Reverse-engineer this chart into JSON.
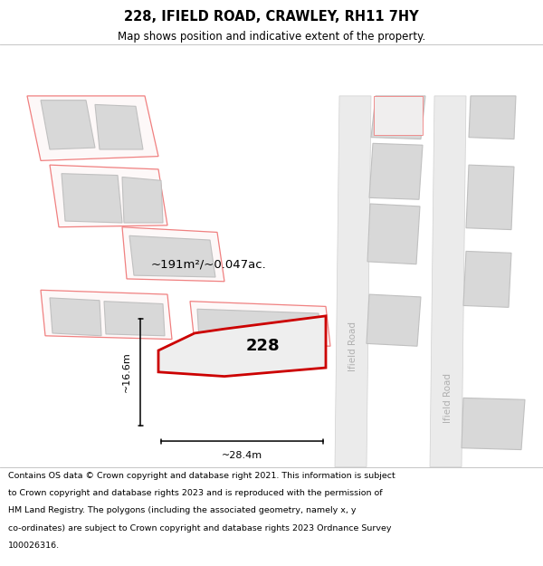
{
  "title": "228, IFIELD ROAD, CRAWLEY, RH11 7HY",
  "subtitle": "Map shows position and indicative extent of the property.",
  "footer": "Contains OS data © Crown copyright and database right 2021. This information is subject to Crown copyright and database rights 2023 and is reproduced with the permission of HM Land Registry. The polygons (including the associated geometry, namely x, y co-ordinates) are subject to Crown copyright and database rights 2023 Ordnance Survey 100026316.",
  "area_text": "~191m²/~0.047ac.",
  "width_text": "~28.4m",
  "height_text": "~16.6m",
  "property_number": "228",
  "road_label_1": "Ifield Road",
  "road_label_2": "Ifield Road",
  "plot_color": "#cc0000",
  "neighbour_outline": "#f08080",
  "neighbour_fill": "#fdf8f8",
  "road_fill": "#ebebeb",
  "road_edge": "#d0d0d0",
  "grey_block_fill": "#d8d8d8",
  "grey_block_outline": "#c0c0c0",
  "map_bg": "#f9f7f7",
  "road_label_color": "#b0b0b0"
}
